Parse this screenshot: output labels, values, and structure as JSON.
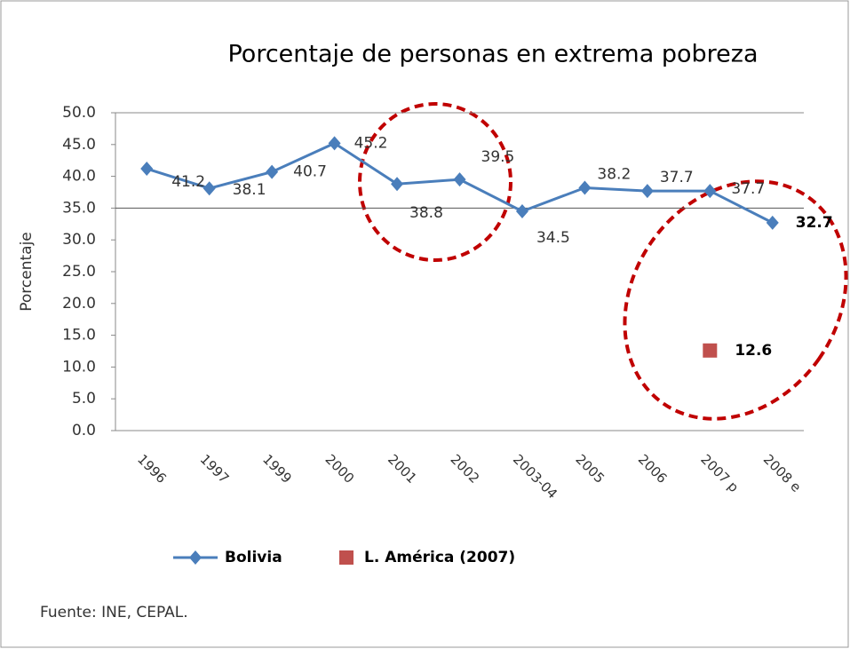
{
  "chart_data": {
    "type": "line",
    "title": "Porcentaje de personas en extrema pobreza",
    "y_label": "Porcentaje",
    "source": "Fuente: INE, CEPAL.",
    "categories": [
      "1996",
      "1997",
      "1999",
      "2000",
      "2001",
      "2002",
      "2003-04",
      "2005",
      "2006",
      "2007 p",
      "2008 e"
    ],
    "series": [
      {
        "name": "Bolivia",
        "color": "#4a7ebb",
        "marker": "diamond",
        "values": [
          41.2,
          38.1,
          40.7,
          45.2,
          38.8,
          39.5,
          34.5,
          38.2,
          37.7,
          37.7,
          32.7
        ]
      },
      {
        "name": "L. América (2007)",
        "color": "#c0504d",
        "marker": "square",
        "values": [
          null,
          null,
          null,
          null,
          null,
          null,
          null,
          null,
          null,
          12.6,
          null
        ]
      }
    ],
    "ylim": [
      0,
      50
    ],
    "yticks": [
      {
        "value": 0,
        "label": "0.0"
      },
      {
        "value": 5,
        "label": "5.0"
      },
      {
        "value": 10,
        "label": "10.0"
      },
      {
        "value": 15,
        "label": "15.0"
      },
      {
        "value": 20,
        "label": "20.0"
      },
      {
        "value": 25,
        "label": "25.0"
      },
      {
        "value": 30,
        "label": "30.0"
      },
      {
        "value": 35,
        "label": "35.0"
      },
      {
        "value": 40,
        "label": "40.0"
      },
      {
        "value": 45,
        "label": "45.0"
      },
      {
        "value": 50,
        "label": "50.0"
      }
    ],
    "hline": 35,
    "legend": "bottom"
  }
}
